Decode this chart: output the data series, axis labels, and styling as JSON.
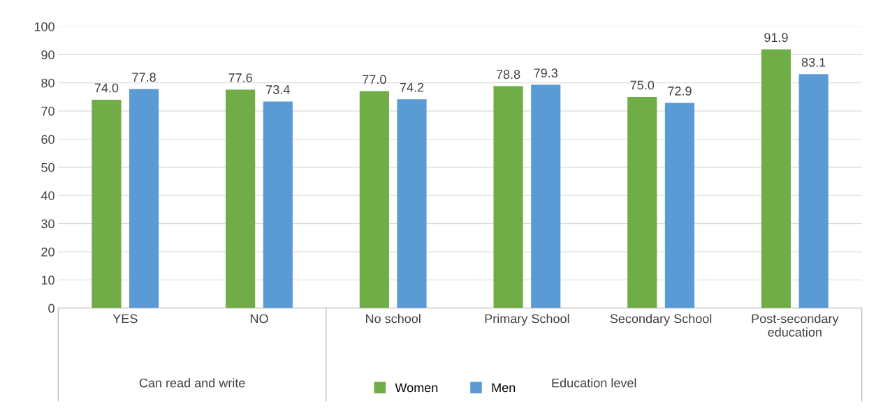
{
  "chart_data": {
    "type": "bar",
    "categories": [
      "YES",
      "NO",
      "No school",
      "Primary School",
      "Secondary School",
      "Post-secondary\neducation"
    ],
    "series": [
      {
        "name": "Women",
        "color": "#70ad47",
        "values": [
          74.0,
          77.6,
          77.0,
          78.8,
          75.0,
          91.9
        ],
        "value_labels": [
          "74.0",
          "77.6",
          "77.0",
          "78.8",
          "75.0",
          "91.9"
        ]
      },
      {
        "name": "Men",
        "color": "#5b9bd5",
        "values": [
          77.8,
          73.4,
          74.2,
          79.3,
          72.9,
          83.1
        ],
        "value_labels": [
          "77.8",
          "73.4",
          "74.2",
          "79.3",
          "72.9",
          "83.1"
        ]
      }
    ],
    "ylim": [
      0,
      100
    ],
    "yticks": [
      0,
      10,
      20,
      30,
      40,
      50,
      60,
      70,
      80,
      90,
      100
    ],
    "grid": "y",
    "legend": "bottom",
    "annotations": [
      "Can read and write",
      "Education level"
    ]
  }
}
